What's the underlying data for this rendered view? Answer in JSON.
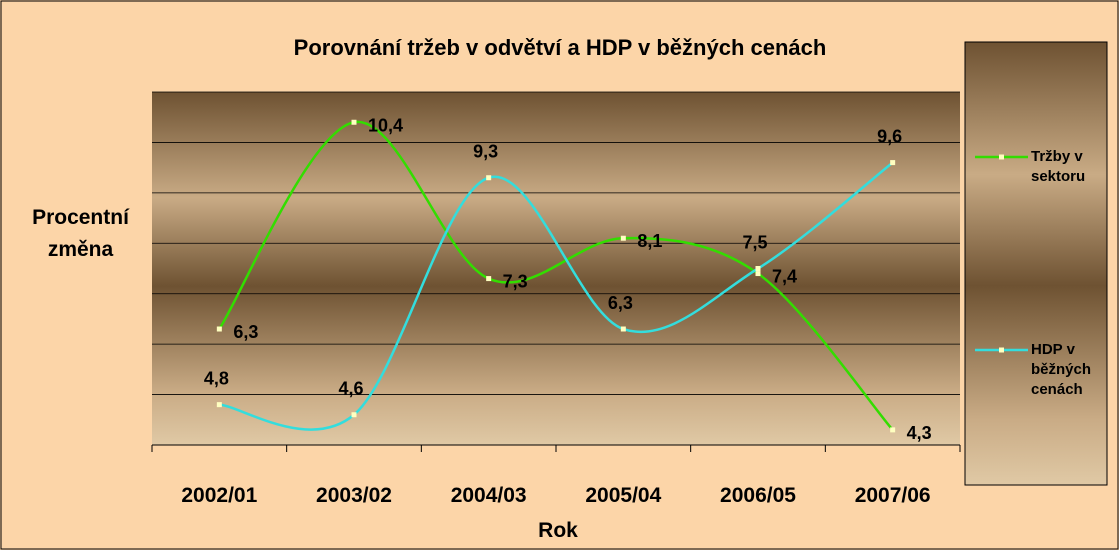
{
  "chart_data": {
    "type": "line",
    "title": "Porovnání tržeb v odvětví a HDP v běžných cenách",
    "x_label": "Rok",
    "y_label": "Procentní změna",
    "categories": [
      "2002/01",
      "2003/02",
      "2004/03",
      "2005/04",
      "2006/05",
      "2007/06"
    ],
    "series": [
      {
        "name": "Tržby v sektoru",
        "color": "#33dd00",
        "values": [
          6.3,
          10.4,
          7.3,
          8.1,
          7.4,
          4.3
        ],
        "value_labels": [
          "6,3",
          "10,4",
          "7,3",
          "8,1",
          "7,4",
          "4,3"
        ]
      },
      {
        "name": "HDP v běžných cenách",
        "color": "#33dddd",
        "values": [
          4.8,
          4.6,
          9.3,
          6.3,
          7.5,
          9.6
        ],
        "value_labels": [
          "4,8",
          "4,6",
          "9,3",
          "6,3",
          "7,5",
          "9,6"
        ]
      }
    ],
    "ylim": [
      4,
      11
    ],
    "yticks": [
      4,
      5,
      6,
      7,
      8,
      9,
      10,
      11
    ],
    "grid": true,
    "legend": "right"
  }
}
